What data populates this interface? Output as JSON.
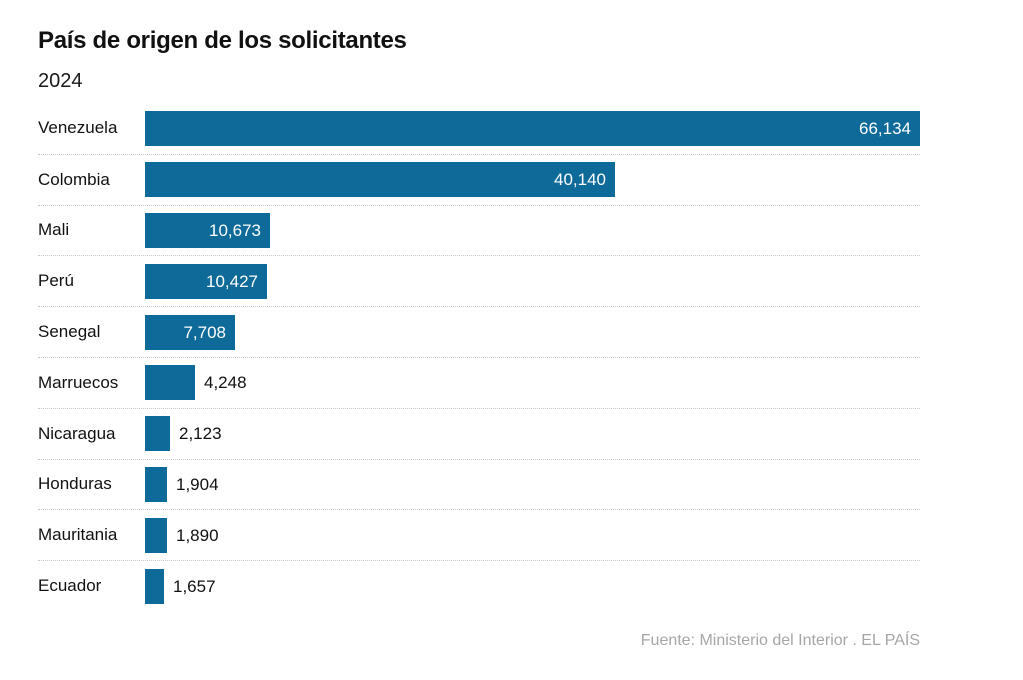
{
  "header": {
    "title": "País de origen de los solicitantes",
    "subtitle": "2024"
  },
  "footer": {
    "source_text": "Fuente: Ministerio del Interior . EL PAÍS"
  },
  "colors": {
    "background": "#ffffff",
    "bar": "#0e6a98",
    "label_text": "#111111",
    "value_inside": "#ffffff",
    "value_outside": "#111111",
    "separator": "#c9c9c9",
    "footer_text": "#a6a6a6"
  },
  "chart_data": {
    "type": "bar",
    "orientation": "horizontal",
    "title": "País de origen de los solicitantes",
    "subtitle": "2024",
    "categories": [
      "Venezuela",
      "Colombia",
      "Mali",
      "Perú",
      "Senegal",
      "Marruecos",
      "Nicaragua",
      "Honduras",
      "Mauritania",
      "Ecuador"
    ],
    "values": [
      66134,
      40140,
      10673,
      10427,
      7708,
      4248,
      2123,
      1904,
      1890,
      1657
    ],
    "value_labels": [
      "66,134",
      "40,140",
      "10,673",
      "10,427",
      "7,708",
      "4,248",
      "2,123",
      "1,904",
      "1,890",
      "1,657"
    ],
    "xlim": [
      0,
      66134
    ],
    "xlabel": "",
    "ylabel": "",
    "grid": false,
    "legend": false,
    "row_separators": "dotted",
    "source": "Fuente: Ministerio del Interior . EL PAÍS"
  }
}
